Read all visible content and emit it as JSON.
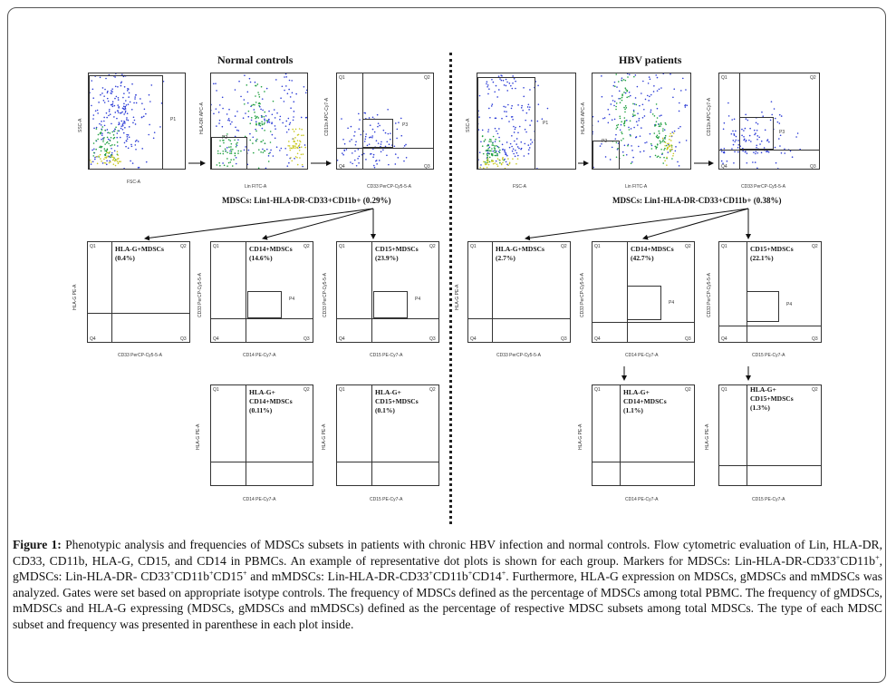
{
  "figure": {
    "groups": {
      "normal": {
        "title": "Normal controls",
        "gate_title": "MDSCs: Lin1-HLA-DR-CD33+CD11b+ (0.29%)"
      },
      "hbv": {
        "title": "HBV patients",
        "gate_title": "MDSCs: Lin1-HLA-DR-CD33+CD11b+ (0.38%)"
      }
    },
    "plots": {
      "n_fsc": {
        "gate": "P1",
        "x_axis": "FSC-A",
        "y_axis": "SSC-A"
      },
      "n_lin": {
        "gate": "P2",
        "x_axis": "Lin FITC-A",
        "y_axis": "HLA-DR APC-A"
      },
      "n_cd33": {
        "gate": "P3",
        "x_axis": "CD33 PerCP-Cy5-5-A",
        "y_axis": "CD11b APC-Cy7-A"
      },
      "h_fsc": {
        "gate": "P1",
        "x_axis": "FSC-A",
        "y_axis": "SSC-A"
      },
      "h_lin": {
        "gate": "P2",
        "x_axis": "Lin FITC-A",
        "y_axis": "HLA-DR APC-A"
      },
      "h_cd33": {
        "gate": "P3",
        "x_axis": "CD33 PerCP-Cy5-5-A",
        "y_axis": "CD11b APC-Cy7-A"
      },
      "n_hlag": {
        "label": "HLA-G+MDSCs",
        "value": "(0.4%)",
        "x_axis": "CD33 PerCP-Cy5-5-A",
        "y_axis": "HLA-G PE-A"
      },
      "n_cd14": {
        "label": "CD14+MDSCs",
        "value": "(14.6%)",
        "gate": "P4",
        "x_axis": "CD14 PE-Cy7-A",
        "y_axis": "CD33 PerCP-Cy5-5-A"
      },
      "n_cd15": {
        "label": "CD15+MDSCs",
        "value": "(23.9%)",
        "gate": "P4",
        "x_axis": "CD15 PE-Cy7-A",
        "y_axis": "CD33 PerCP-Cy5-5-A"
      },
      "h_hlag": {
        "label": "HLA-G+MDSCs",
        "value": "(2.7%)",
        "x_axis": "CD33 PerCP-Cy5-5-A",
        "y_axis": "HLA-G PE-A"
      },
      "h_cd14": {
        "label": "CD14+MDSCs",
        "value": "(42.7%)",
        "gate": "P4",
        "x_axis": "CD14 PE-Cy7-A",
        "y_axis": "CD33 PerCP-Cy5-5-A"
      },
      "h_cd15": {
        "label": "CD15+MDSCs",
        "value": "(22.1%)",
        "gate": "P4",
        "x_axis": "CD15 PE-Cy7-A",
        "y_axis": "CD33 PerCP-Cy5-5-A"
      },
      "n_hg14": {
        "label1": "HLA-G+",
        "label2": "CD14+MDSCs",
        "value": "(0.11%)",
        "x_axis": "CD14 PE-Cy7-A",
        "y_axis": "HLA-G PE-A"
      },
      "n_hg15": {
        "label1": "HLA-G+",
        "label2": "CD15+MDSCs",
        "value": "(0.1%)",
        "x_axis": "CD15 PE-Cy7-A",
        "y_axis": "HLA-G PE-A"
      },
      "h_hg14": {
        "label1": "HLA-G+",
        "label2": "CD14+MDSCs",
        "value": "(1.1%)",
        "x_axis": "CD14 PE-Cy7-A",
        "y_axis": "HLA-G PE-A"
      },
      "h_hg15": {
        "label1": "HLA-G+",
        "label2": "CD15+MDSCs",
        "value": "(1.3%)",
        "x_axis": "CD15 PE-Cy7-A",
        "y_axis": "HLA-G PE-A"
      }
    },
    "quadrants": {
      "q1": "Q1",
      "q2": "Q2",
      "q3": "Q3",
      "q4": "Q4"
    }
  },
  "caption": {
    "label": "Figure 1:",
    "part1": " Phenotypic analysis and frequencies of MDSCs subsets in patients with chronic HBV infection and normal controls. Flow cytometric evaluation of Lin, HLA-DR, CD33, CD11b, HLA-G, CD15, and CD14 in PBMCs. An example of representative dot plots is shown for each group. Markers for MDSCs: Lin-HLA-DR-CD33",
    "sup_plus": "+",
    "part2": "CD11b",
    "part3": ", gMDSCs: Lin-HLA-DR- CD33",
    "part4": "CD11b",
    "part5": "CD15",
    "part6": " and mMDSCs: Lin-HLA-DR-CD33",
    "part7": "CD11b",
    "part8": "CD14",
    "part9": ". Furthermore, HLA-G expression on MDSCs, gMDSCs and mMDSCs was analyzed. Gates were set based on appropriate isotype controls. The frequency of MDSCs defined as the percentage of MDSCs among total PBMC. The frequency of gMDSCs, mMDSCs and HLA-G expressing (MDSCs, gMDSCs and mMDSCs) defined as the percentage of respective MDSC subsets among total MDSCs. The type of each MDSC subset and frequency was presented in parenthese in each plot inside."
  }
}
